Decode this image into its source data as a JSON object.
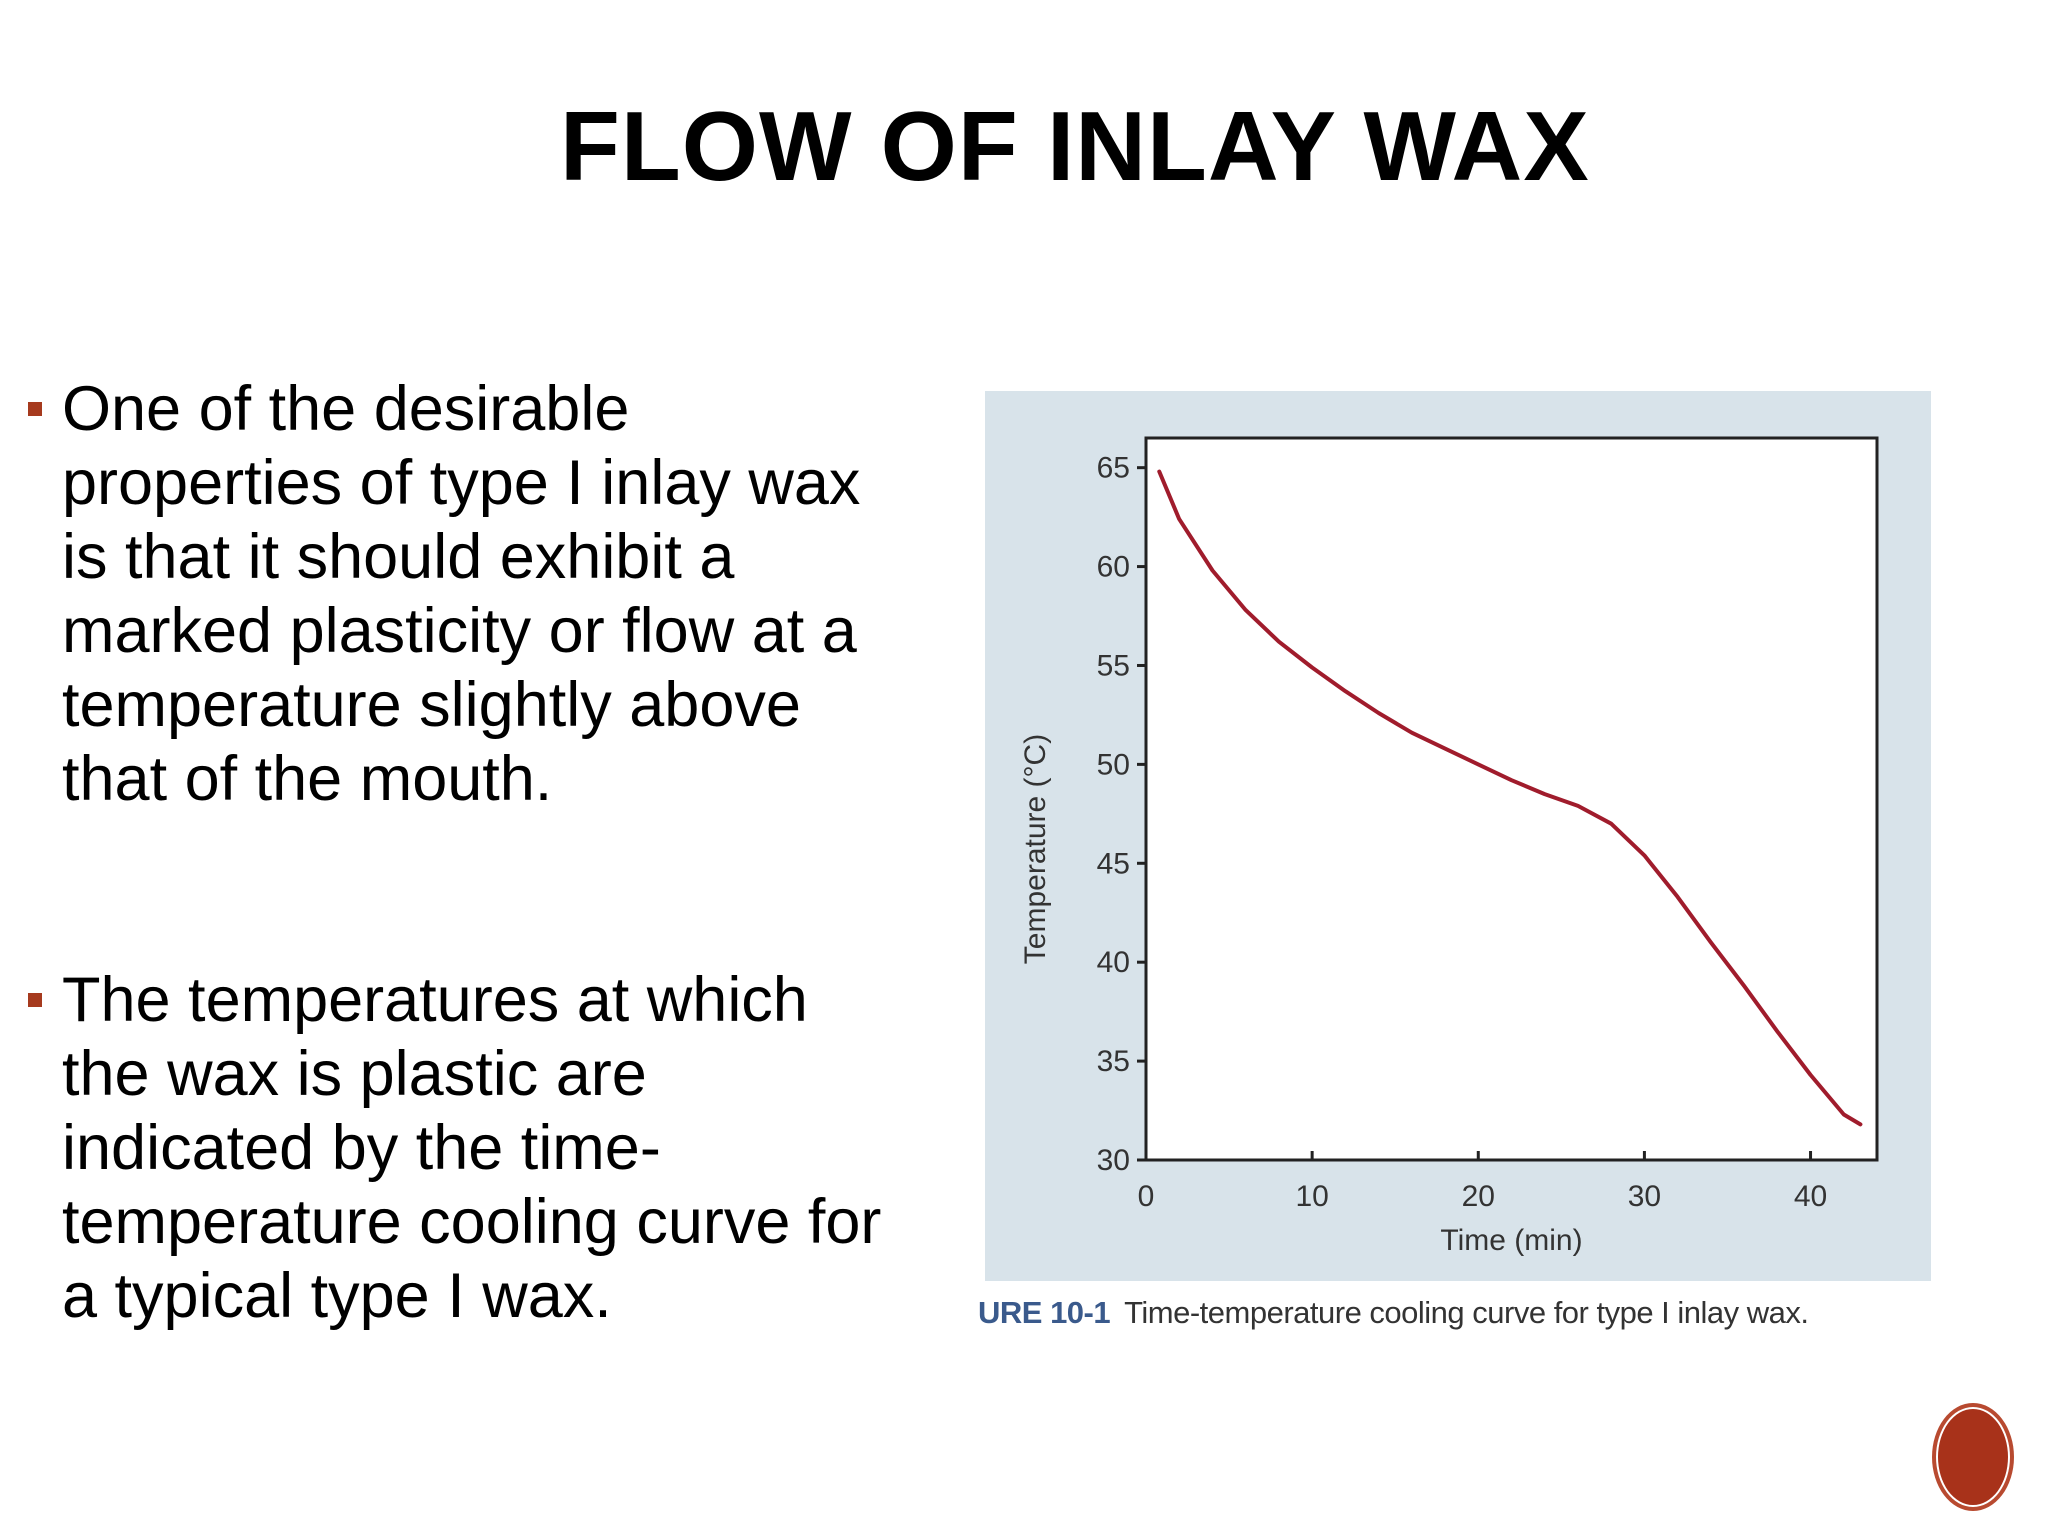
{
  "slide": {
    "title": "FLOW OF INLAY WAX",
    "bullets": [
      "One of the desirable properties of type I inlay wax is that it should exhibit a marked plasticity or flow at a temperature slightly above that of the mouth.",
      "The temperatures at which the wax is plastic are indicated by the time-temperature cooling curve for a typical type I wax."
    ],
    "bullet_color": "#a63a1e"
  },
  "figure": {
    "caption_label": "URE 10-1",
    "caption_text": "Time-temperature cooling curve for type I inlay wax.",
    "panel_color": "#d8e3ea",
    "curve_color": "#a01c2c"
  },
  "chart_data": {
    "type": "line",
    "xlabel": "Time (min)",
    "ylabel": "Temperature (°C)",
    "xlim": [
      0,
      44
    ],
    "ylim": [
      30,
      66.5
    ],
    "xticks": [
      0,
      10,
      20,
      30,
      40
    ],
    "yticks": [
      30,
      35,
      40,
      45,
      50,
      55,
      60,
      65
    ],
    "grid": false,
    "series": [
      {
        "x": [
          0.8,
          2,
          4,
          6,
          8,
          10,
          12,
          14,
          16,
          18,
          20,
          22,
          24,
          26,
          28,
          30,
          32,
          34,
          36,
          38,
          40,
          42,
          43
        ],
        "y": [
          64.8,
          62.4,
          59.8,
          57.8,
          56.2,
          54.9,
          53.7,
          52.6,
          51.6,
          50.8,
          50,
          49.2,
          48.5,
          47.9,
          47,
          45.4,
          43.3,
          41,
          38.8,
          36.5,
          34.3,
          32.3,
          31.8
        ]
      }
    ]
  },
  "nav": {
    "circle_color": "#a8321a"
  }
}
